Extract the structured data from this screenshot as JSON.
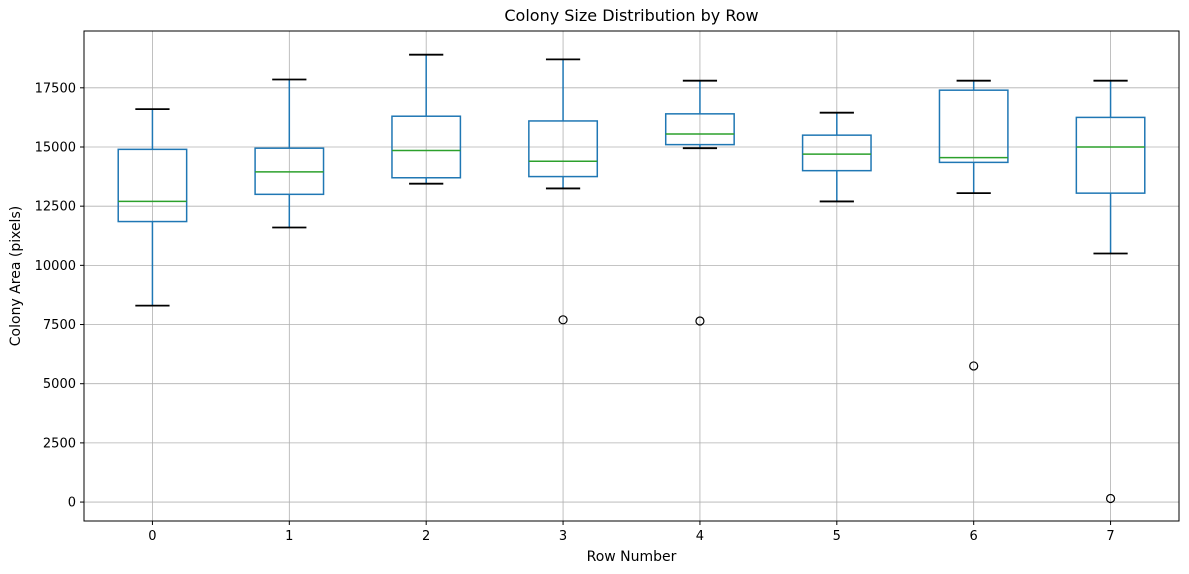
{
  "chart_data": {
    "type": "boxplot",
    "title": "Colony Size Distribution by Row",
    "xlabel": "Row Number",
    "ylabel": "Colony Area (pixels)",
    "categories": [
      "0",
      "1",
      "2",
      "3",
      "4",
      "5",
      "6",
      "7"
    ],
    "yticks": [
      0,
      2500,
      5000,
      7500,
      10000,
      12500,
      15000,
      17500
    ],
    "ylim": [
      -800,
      19900
    ],
    "grid": true,
    "legend": "none",
    "colors": {
      "box": "#1f77b4",
      "whisker": "#1f77b4",
      "cap": "#000000",
      "median": "#2ca02c",
      "outlier_edge": "#000000",
      "grid": "#b0b0b0",
      "spine": "#000000",
      "background": "#ffffff"
    },
    "series": [
      {
        "category": "0",
        "whislo": 8300,
        "q1": 11850,
        "med": 12700,
        "q3": 14900,
        "whishi": 16600,
        "outliers": []
      },
      {
        "category": "1",
        "whislo": 11600,
        "q1": 13000,
        "med": 13950,
        "q3": 14950,
        "whishi": 17850,
        "outliers": []
      },
      {
        "category": "2",
        "whislo": 13450,
        "q1": 13700,
        "med": 14850,
        "q3": 16300,
        "whishi": 18900,
        "outliers": []
      },
      {
        "category": "3",
        "whislo": 13250,
        "q1": 13750,
        "med": 14400,
        "q3": 16100,
        "whishi": 18700,
        "outliers": [
          7700
        ]
      },
      {
        "category": "4",
        "whislo": 14950,
        "q1": 15100,
        "med": 15550,
        "q3": 16400,
        "whishi": 17800,
        "outliers": [
          7650
        ]
      },
      {
        "category": "5",
        "whislo": 12700,
        "q1": 14000,
        "med": 14700,
        "q3": 15500,
        "whishi": 16450,
        "outliers": []
      },
      {
        "category": "6",
        "whislo": 13050,
        "q1": 14350,
        "med": 14550,
        "q3": 17400,
        "whishi": 17800,
        "outliers": [
          5750
        ]
      },
      {
        "category": "7",
        "whislo": 10500,
        "q1": 13050,
        "med": 15000,
        "q3": 16250,
        "whishi": 17800,
        "outliers": [
          150
        ]
      }
    ]
  }
}
